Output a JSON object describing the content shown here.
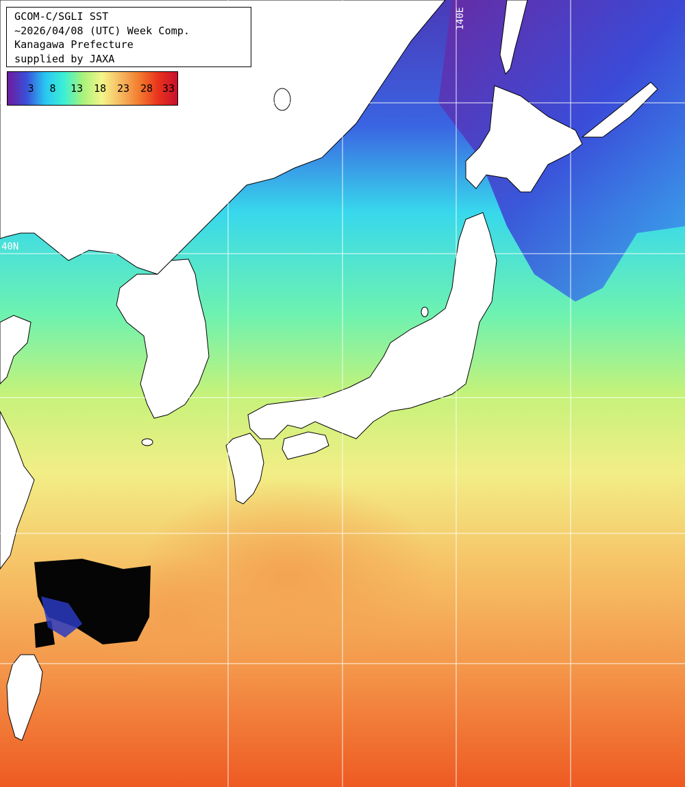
{
  "header": {
    "line1": "GCOM-C/SGLI SST",
    "line2": "~2026/04/08 (UTC) Week Comp.",
    "line3": "Kanagawa Prefecture",
    "line4": "supplied by JAXA"
  },
  "colorbar": {
    "ticks": [
      "3",
      "8",
      "13",
      "18",
      "23",
      "28",
      "33"
    ],
    "colors": [
      "#6e1a9c",
      "#3a4fd8",
      "#29c6f2",
      "#3cf0d4",
      "#a8f27a",
      "#f4f58a",
      "#f7b860",
      "#f27a2e",
      "#e8321c",
      "#c8102e"
    ]
  },
  "grid_labels": {
    "lon": "140E",
    "lat": "40N"
  },
  "colors": {
    "land": "#ffffff",
    "cold": "#6a2ca8",
    "cool": "#3a5ae0",
    "mid": "#3ce6e0",
    "mild": "#b4f07a",
    "warm": "#f6e07a",
    "hot": "#f4a04a",
    "hotter": "#f06a2a",
    "cloud": "#050505",
    "grid": "#ffffff"
  }
}
